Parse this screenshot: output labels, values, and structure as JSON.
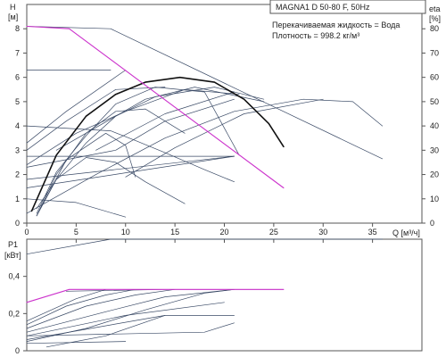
{
  "header": {
    "model": "MAGNA1 D 50-80 F, 50Hz",
    "liquid": "Перекачиваемая жидкость = Вода",
    "density": "Плотность = 998.2 кг/м³"
  },
  "colors": {
    "series": "#3a4a66",
    "highlight": "#cc33cc",
    "bold": "#111111",
    "frame": "#555555"
  },
  "chart_data": [
    {
      "type": "line",
      "panel": "top",
      "xlabel": "Q [м³/ч]",
      "ylabel_left": "H [м]",
      "ylabel_right": "eta [%]",
      "xlim": [
        0,
        40
      ],
      "ylim": [
        0,
        9
      ],
      "ylim_right": [
        0,
        90
      ],
      "xticks": [
        0,
        5,
        10,
        15,
        20,
        25,
        30,
        35
      ],
      "yticks": [
        0,
        1,
        2,
        3,
        4,
        5,
        6,
        7,
        8
      ],
      "yticks_right": [
        0,
        10,
        20,
        30,
        40,
        50,
        60,
        70,
        80
      ],
      "series": [
        {
          "style": "thin",
          "points": [
            [
              0,
              8.1
            ],
            [
              8.5,
              8.0
            ],
            [
              36,
              2.65
            ]
          ]
        },
        {
          "style": "thin",
          "points": [
            [
              0,
              6.3
            ],
            [
              8.5,
              6.3
            ]
          ]
        },
        {
          "style": "thin",
          "points": [
            [
              0,
              4.0
            ],
            [
              8.5,
              3.8
            ],
            [
              11,
              3.4
            ],
            [
              14,
              2.9
            ],
            [
              18,
              2.2
            ],
            [
              21,
              1.7
            ]
          ]
        },
        {
          "style": "thin",
          "points": [
            [
              0,
              2.75
            ],
            [
              21,
              2.75
            ]
          ]
        },
        {
          "style": "thin",
          "points": [
            [
              0,
              1.8
            ],
            [
              21,
              2.75
            ]
          ]
        },
        {
          "style": "thin",
          "points": [
            [
              0,
              1.0
            ],
            [
              5,
              0.85
            ],
            [
              10,
              0.25
            ]
          ]
        },
        {
          "style": "thin",
          "points": [
            [
              0,
              1.45
            ],
            [
              21,
              2.75
            ]
          ]
        },
        {
          "style": "thin",
          "points": [
            [
              1,
              0.3
            ],
            [
              3,
              1.8
            ],
            [
              6,
              3.3
            ],
            [
              9,
              4.4
            ],
            [
              13,
              5.2
            ],
            [
              19,
              5.6
            ],
            [
              24,
              5.1
            ]
          ]
        },
        {
          "style": "thin",
          "points": [
            [
              1,
              0.4
            ],
            [
              3,
              2.1
            ],
            [
              6,
              3.6
            ],
            [
              9,
              4.9
            ],
            [
              13,
              5.6
            ],
            [
              18,
              5.4
            ],
            [
              21.5,
              2.8
            ]
          ]
        },
        {
          "style": "thin",
          "points": [
            [
              1,
              0.3
            ],
            [
              3,
              2.0
            ],
            [
              6,
              3.7
            ],
            [
              9,
              4.6
            ],
            [
              12,
              4.7
            ],
            [
              16,
              3.7
            ]
          ]
        },
        {
          "style": "thin",
          "points": [
            [
              1,
              0.3
            ],
            [
              4,
              2.6
            ],
            [
              8,
              3.7
            ],
            [
              10,
              3.2
            ],
            [
              11,
              1.9
            ]
          ]
        },
        {
          "style": "thin",
          "points": [
            [
              1,
              0.6
            ],
            [
              3,
              1.8
            ],
            [
              6,
              2.7
            ],
            [
              9,
              2.5
            ],
            [
              12,
              1.7
            ],
            [
              16,
              0.8
            ]
          ]
        },
        {
          "style": "thin",
          "points": [
            [
              0,
              2.4
            ],
            [
              5,
              3.7
            ],
            [
              10,
              4.6
            ],
            [
              16,
              5.5
            ],
            [
              21.5,
              5.3
            ]
          ]
        },
        {
          "style": "thin",
          "points": [
            [
              0,
              3.3
            ],
            [
              4,
              4.6
            ],
            [
              10,
              6.3
            ]
          ]
        },
        {
          "style": "thin",
          "points": [
            [
              0,
              3.0
            ],
            [
              4,
              4.2
            ],
            [
              9,
              5.5
            ],
            [
              14,
              5.6
            ]
          ]
        },
        {
          "style": "thin",
          "points": [
            [
              0,
              2.3
            ],
            [
              9,
              3.0
            ],
            [
              14,
              4.2
            ],
            [
              21,
              5.1
            ]
          ]
        },
        {
          "style": "thin",
          "points": [
            [
              0,
              0.4
            ],
            [
              7,
              2.0
            ],
            [
              14,
              3.5
            ],
            [
              21,
              4.6
            ],
            [
              28,
              5.1
            ],
            [
              33,
              5.0
            ],
            [
              36,
              4.0
            ]
          ]
        },
        {
          "style": "thin",
          "points": [
            [
              10,
              1.9
            ],
            [
              15,
              3.1
            ],
            [
              22,
              4.5
            ],
            [
              30,
              5.1
            ]
          ]
        },
        {
          "style": "thin",
          "points": [
            [
              3,
              3.0
            ],
            [
              12,
              5.1
            ],
            [
              17,
              5.6
            ],
            [
              24,
              5.0
            ]
          ]
        },
        {
          "style": "thin",
          "points": [
            [
              7,
              3.0
            ],
            [
              14,
              4.5
            ],
            [
              21,
              5.4
            ]
          ]
        },
        {
          "style": "bold",
          "points": [
            [
              0.5,
              0.5
            ],
            [
              3,
              2.8
            ],
            [
              6,
              4.4
            ],
            [
              9,
              5.3
            ],
            [
              12,
              5.8
            ],
            [
              15.5,
              6.0
            ],
            [
              19,
              5.8
            ],
            [
              22,
              5.1
            ],
            [
              24.5,
              4.1
            ],
            [
              26,
              3.15
            ]
          ]
        },
        {
          "style": "highlight",
          "points": [
            [
              0,
              8.1
            ],
            [
              4.3,
              8.0
            ],
            [
              26,
              1.45
            ]
          ]
        }
      ]
    },
    {
      "type": "line",
      "panel": "bottom",
      "ylabel": "P1 [кВт]",
      "xlim": [
        0,
        40
      ],
      "ylim": [
        0,
        0.6
      ],
      "yticks": [
        0,
        0.2,
        0.4
      ],
      "series": [
        {
          "style": "thin",
          "points": [
            [
              0,
              0.52
            ],
            [
              8.5,
              0.6
            ],
            [
              36,
              0.6
            ]
          ]
        },
        {
          "style": "thin",
          "points": [
            [
              0,
              0.04
            ],
            [
              10,
              0.05
            ]
          ]
        },
        {
          "style": "thin",
          "points": [
            [
              0,
              0.06
            ],
            [
              14,
              0.19
            ],
            [
              21,
              0.19
            ]
          ]
        },
        {
          "style": "thin",
          "points": [
            [
              0,
              0.08
            ],
            [
              10,
              0.19
            ],
            [
              20,
              0.26
            ]
          ]
        },
        {
          "style": "thin",
          "points": [
            [
              0,
              0.1
            ],
            [
              8,
              0.21
            ],
            [
              14,
              0.29
            ],
            [
              21,
              0.33
            ]
          ]
        },
        {
          "style": "thin",
          "points": [
            [
              0,
              0.12
            ],
            [
              6,
              0.24
            ],
            [
              11,
              0.3
            ],
            [
              15,
              0.33
            ]
          ]
        },
        {
          "style": "thin",
          "points": [
            [
              0,
              0.14
            ],
            [
              4,
              0.24
            ],
            [
              8,
              0.3
            ],
            [
              11,
              0.33
            ]
          ]
        },
        {
          "style": "thin",
          "points": [
            [
              0,
              0.16
            ],
            [
              5,
              0.28
            ],
            [
              8,
              0.33
            ]
          ]
        },
        {
          "style": "thin",
          "points": [
            [
              2,
              0.02
            ],
            [
              8,
              0.08
            ],
            [
              14,
              0.19
            ]
          ]
        },
        {
          "style": "thin",
          "points": [
            [
              0,
              0.05
            ],
            [
              6,
              0.12
            ],
            [
              12,
              0.22
            ],
            [
              18,
              0.31
            ],
            [
              21,
              0.33
            ]
          ]
        },
        {
          "style": "thin",
          "points": [
            [
              0,
              0.08
            ],
            [
              18,
              0.1
            ],
            [
              21,
              0.15
            ]
          ]
        },
        {
          "style": "thin",
          "points": [
            [
              4,
              0.32
            ],
            [
              14,
              0.33
            ],
            [
              26,
              0.33
            ]
          ]
        },
        {
          "style": "highlight",
          "points": [
            [
              0,
              0.26
            ],
            [
              4.3,
              0.33
            ],
            [
              26,
              0.33
            ]
          ]
        }
      ]
    }
  ]
}
